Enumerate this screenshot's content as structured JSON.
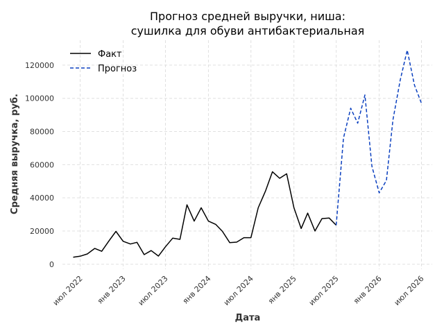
{
  "chart_data": {
    "type": "line",
    "title": [
      "Прогноз средней выручки, ниша:",
      "сушилка для обуви антибактериальная"
    ],
    "xlabel": "Дата",
    "ylabel": "Средняя выручка, руб.",
    "ylim": [
      -3000,
      135000
    ],
    "xlim": [
      "2022-04-16",
      "2026-08-16"
    ],
    "yticks": [
      0,
      20000,
      40000,
      60000,
      80000,
      100000,
      120000
    ],
    "xticks": [
      {
        "date": "2022-07-01",
        "label": "июл 2022"
      },
      {
        "date": "2023-01-01",
        "label": "янв 2023"
      },
      {
        "date": "2023-07-01",
        "label": "июл 2023"
      },
      {
        "date": "2024-01-01",
        "label": "янв 2024"
      },
      {
        "date": "2024-07-01",
        "label": "июл 2024"
      },
      {
        "date": "2025-01-01",
        "label": "янв 2025"
      },
      {
        "date": "2025-07-01",
        "label": "июл 2025"
      },
      {
        "date": "2026-01-01",
        "label": "янв 2026"
      },
      {
        "date": "2026-07-01",
        "label": "июл 2026"
      }
    ],
    "grid": true,
    "legend_position": "top-left",
    "series": [
      {
        "name": "Факт",
        "color": "#000000",
        "style": "solid",
        "points": [
          [
            "2022-06-01",
            4200
          ],
          [
            "2022-07-01",
            4800
          ],
          [
            "2022-08-01",
            6200
          ],
          [
            "2022-09-01",
            9500
          ],
          [
            "2022-10-01",
            7800
          ],
          [
            "2022-11-01",
            14000
          ],
          [
            "2022-12-01",
            19800
          ],
          [
            "2023-01-01",
            13800
          ],
          [
            "2023-02-01",
            12200
          ],
          [
            "2023-03-01",
            13200
          ],
          [
            "2023-04-01",
            5800
          ],
          [
            "2023-05-01",
            8200
          ],
          [
            "2023-06-01",
            4900
          ],
          [
            "2023-07-01",
            10500
          ],
          [
            "2023-08-01",
            15700
          ],
          [
            "2023-09-01",
            15000
          ],
          [
            "2023-10-01",
            35800
          ],
          [
            "2023-11-01",
            26000
          ],
          [
            "2023-12-01",
            34000
          ],
          [
            "2024-01-01",
            26000
          ],
          [
            "2024-02-01",
            24000
          ],
          [
            "2024-03-01",
            19800
          ],
          [
            "2024-04-01",
            13000
          ],
          [
            "2024-05-01",
            13300
          ],
          [
            "2024-06-01",
            16000
          ],
          [
            "2024-07-01",
            16000
          ],
          [
            "2024-08-01",
            34000
          ],
          [
            "2024-09-01",
            44000
          ],
          [
            "2024-10-01",
            55700
          ],
          [
            "2024-11-01",
            51800
          ],
          [
            "2024-12-01",
            54500
          ],
          [
            "2025-01-01",
            34000
          ],
          [
            "2025-02-01",
            21500
          ],
          [
            "2025-03-01",
            30800
          ],
          [
            "2025-04-01",
            20000
          ],
          [
            "2025-05-01",
            27500
          ],
          [
            "2025-06-01",
            27800
          ],
          [
            "2025-07-01",
            23500
          ]
        ]
      },
      {
        "name": "Прогноз",
        "color": "#0a3fbf",
        "style": "dashed",
        "points": [
          [
            "2025-07-01",
            23500
          ],
          [
            "2025-08-01",
            76000
          ],
          [
            "2025-09-01",
            94000
          ],
          [
            "2025-10-01",
            85000
          ],
          [
            "2025-11-01",
            102000
          ],
          [
            "2025-12-01",
            59000
          ],
          [
            "2026-01-01",
            43000
          ],
          [
            "2026-02-01",
            50500
          ],
          [
            "2026-03-01",
            87000
          ],
          [
            "2026-04-01",
            111000
          ],
          [
            "2026-05-01",
            129000
          ],
          [
            "2026-06-01",
            108000
          ],
          [
            "2026-07-01",
            97000
          ]
        ]
      }
    ]
  }
}
